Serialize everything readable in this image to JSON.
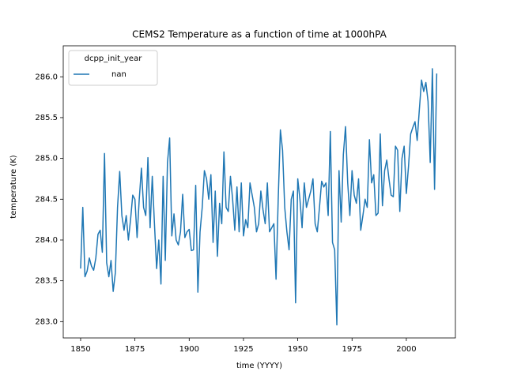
{
  "chart_data": {
    "type": "line",
    "title": "CEMS2 Temperature as a function of time at 1000hPA",
    "x_label": "time (YYYY)",
    "y_label": "temperature (K)",
    "legend_title": "dcpp_init_year",
    "legend_position": "upper left",
    "x": [
      1850,
      1851,
      1852,
      1853,
      1854,
      1855,
      1856,
      1857,
      1858,
      1859,
      1860,
      1861,
      1862,
      1863,
      1864,
      1865,
      1866,
      1867,
      1868,
      1869,
      1870,
      1871,
      1872,
      1873,
      1874,
      1875,
      1876,
      1877,
      1878,
      1879,
      1880,
      1881,
      1882,
      1883,
      1884,
      1885,
      1886,
      1887,
      1888,
      1889,
      1890,
      1891,
      1892,
      1893,
      1894,
      1895,
      1896,
      1897,
      1898,
      1899,
      1900,
      1901,
      1902,
      1903,
      1904,
      1905,
      1906,
      1907,
      1908,
      1909,
      1910,
      1911,
      1912,
      1913,
      1914,
      1915,
      1916,
      1917,
      1918,
      1919,
      1920,
      1921,
      1922,
      1923,
      1924,
      1925,
      1926,
      1927,
      1928,
      1929,
      1930,
      1931,
      1932,
      1933,
      1934,
      1935,
      1936,
      1937,
      1938,
      1939,
      1940,
      1941,
      1942,
      1943,
      1944,
      1945,
      1946,
      1947,
      1948,
      1949,
      1950,
      1951,
      1952,
      1953,
      1954,
      1955,
      1956,
      1957,
      1958,
      1959,
      1960,
      1961,
      1962,
      1963,
      1964,
      1965,
      1966,
      1967,
      1968,
      1969,
      1970,
      1971,
      1972,
      1973,
      1974,
      1975,
      1976,
      1977,
      1978,
      1979,
      1980,
      1981,
      1982,
      1983,
      1984,
      1985,
      1986,
      1987,
      1988,
      1989,
      1990,
      1991,
      1992,
      1993,
      1994,
      1995,
      1996,
      1997,
      1998,
      1999,
      2000,
      2001,
      2002,
      2003,
      2004,
      2005,
      2006,
      2007,
      2008,
      2009,
      2010,
      2011,
      2012,
      2013,
      2014
    ],
    "series": [
      {
        "name": "nan",
        "color": "#1f77b4",
        "values": [
          283.65,
          284.4,
          283.55,
          283.62,
          283.78,
          283.68,
          283.63,
          283.78,
          284.07,
          284.12,
          283.85,
          285.06,
          283.72,
          283.55,
          283.75,
          283.37,
          283.6,
          284.4,
          284.84,
          284.3,
          284.12,
          284.3,
          284.0,
          284.25,
          284.55,
          284.5,
          284.03,
          284.5,
          284.88,
          284.4,
          284.3,
          285.01,
          284.15,
          284.78,
          284.2,
          283.65,
          284.0,
          283.46,
          284.78,
          283.75,
          284.95,
          285.25,
          284.05,
          284.32,
          284.0,
          283.94,
          284.1,
          284.56,
          284.03,
          284.1,
          284.13,
          283.87,
          283.88,
          284.67,
          283.36,
          284.1,
          284.4,
          284.85,
          284.75,
          284.5,
          284.8,
          283.97,
          284.6,
          283.8,
          284.45,
          284.2,
          285.08,
          284.4,
          284.35,
          284.78,
          284.5,
          284.12,
          284.65,
          284.1,
          284.7,
          284.05,
          284.25,
          284.15,
          284.7,
          284.55,
          284.4,
          284.1,
          284.2,
          284.6,
          284.37,
          284.2,
          284.7,
          284.1,
          284.15,
          284.2,
          283.52,
          284.5,
          285.35,
          285.1,
          284.4,
          284.1,
          283.88,
          284.5,
          284.6,
          283.23,
          284.75,
          284.5,
          284.15,
          284.7,
          284.4,
          284.5,
          284.6,
          284.75,
          284.2,
          284.1,
          284.4,
          284.72,
          284.65,
          284.7,
          284.3,
          285.33,
          283.97,
          283.88,
          282.96,
          284.85,
          284.22,
          285.05,
          285.39,
          284.7,
          284.3,
          284.85,
          284.55,
          284.45,
          284.75,
          284.12,
          284.3,
          284.5,
          284.4,
          285.23,
          284.7,
          284.8,
          284.3,
          284.33,
          285.3,
          284.42,
          284.85,
          284.98,
          284.75,
          284.55,
          284.53,
          285.15,
          285.1,
          284.35,
          285.0,
          285.15,
          284.57,
          284.9,
          285.3,
          285.38,
          285.45,
          285.22,
          285.6,
          285.96,
          285.82,
          285.93,
          285.7,
          284.95,
          286.1,
          284.62,
          286.04
        ]
      }
    ],
    "xlim": [
      1842,
      2022.6
    ],
    "ylim": [
      282.8,
      286.38
    ],
    "xticks": [
      1850,
      1875,
      1900,
      1925,
      1950,
      1975,
      2000
    ],
    "yticks": [
      {
        "value": 283,
        "label": "283.0"
      },
      283.5,
      {
        "value": 284,
        "label": "284.0"
      },
      284.5,
      {
        "value": 285,
        "label": "285.0"
      },
      285.5,
      {
        "value": 286,
        "label": "286.0"
      }
    ]
  }
}
